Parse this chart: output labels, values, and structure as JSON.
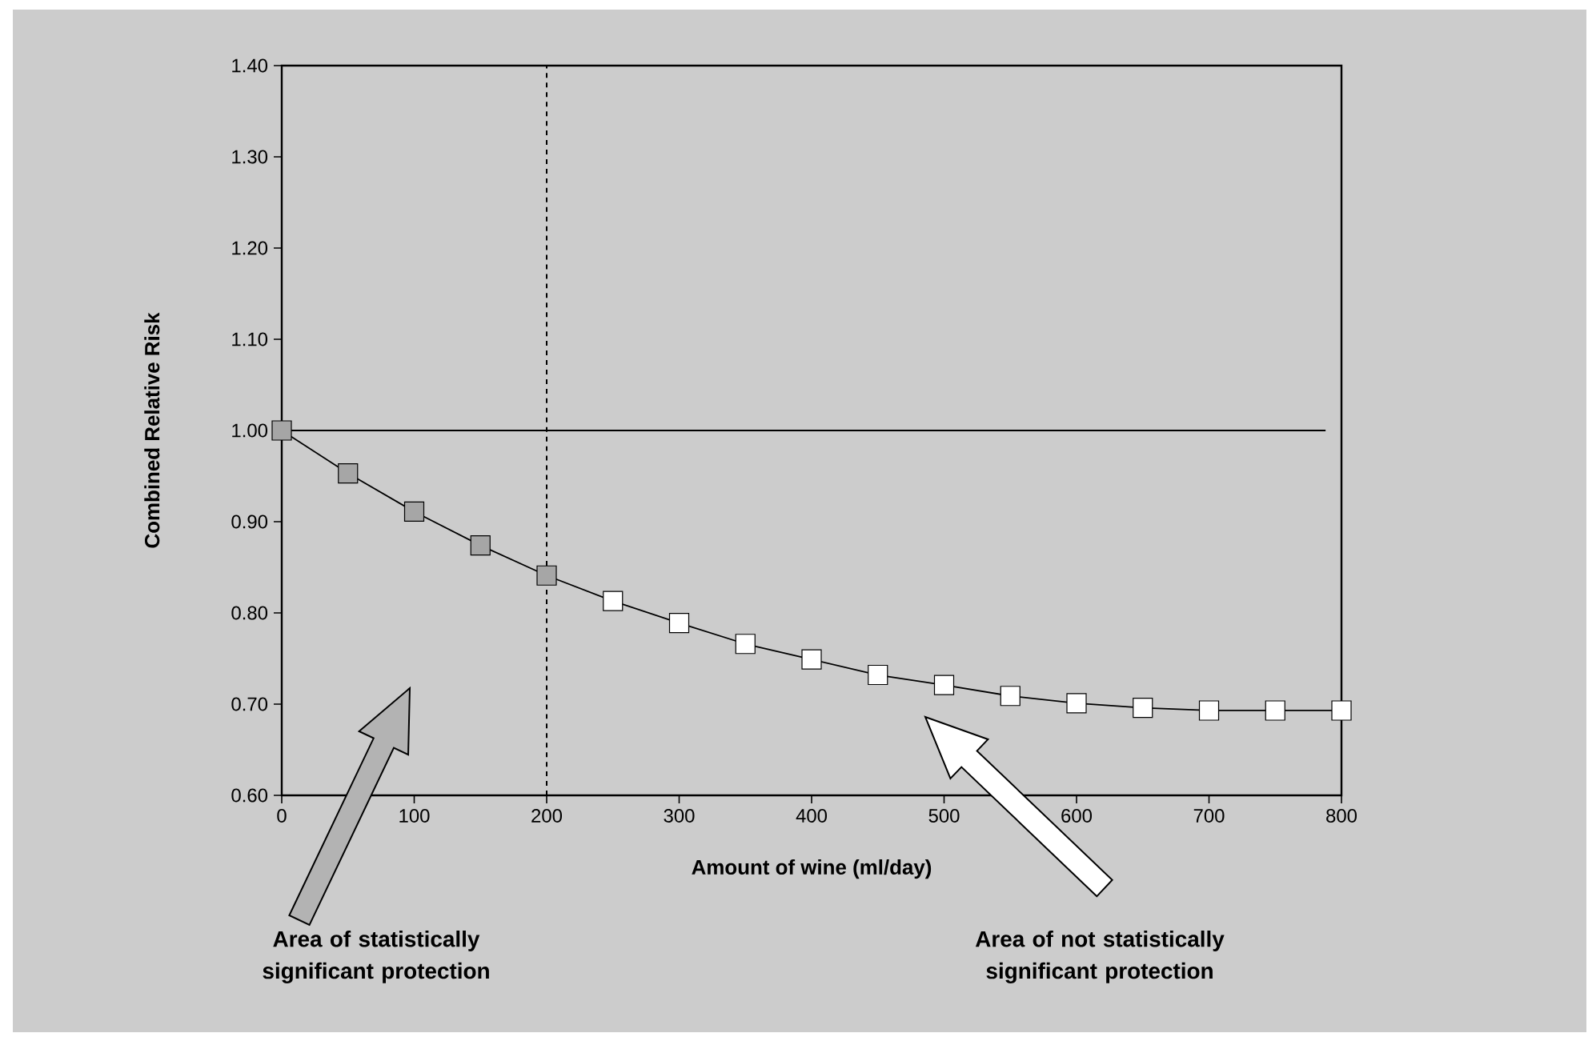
{
  "chart_data": {
    "type": "line",
    "xlabel": "Amount of wine (ml/day)",
    "ylabel": "Combined Relative Risk",
    "x": [
      0,
      50,
      100,
      150,
      200,
      250,
      300,
      350,
      400,
      450,
      500,
      550,
      600,
      650,
      700,
      750,
      800
    ],
    "series": [
      {
        "color": "#000000",
        "values": [
          1.0,
          0.953,
          0.911,
          0.874,
          0.841,
          0.813,
          0.789,
          0.766,
          0.749,
          0.732,
          0.721,
          0.709,
          0.701,
          0.696,
          0.693,
          0.693,
          0.693
        ],
        "colors": [
          "#a6a6a6",
          "#a6a6a6",
          "#a6a6a6",
          "#a6a6a6",
          "#a6a6a6",
          "#ffffff",
          "#ffffff",
          "#ffffff",
          "#ffffff",
          "#ffffff",
          "#ffffff",
          "#ffffff",
          "#ffffff",
          "#ffffff",
          "#ffffff",
          "#ffffff",
          "#ffffff"
        ]
      }
    ],
    "xlim": [
      0,
      800
    ],
    "xticks": [
      0,
      100,
      200,
      300,
      400,
      500,
      600,
      700,
      800
    ],
    "ylim": [
      0.6,
      1.4
    ],
    "yticks": [
      {
        "value": 0.6,
        "label": "0.60"
      },
      {
        "value": 0.7,
        "label": "0.70"
      },
      {
        "value": 0.8,
        "label": "0.80"
      },
      {
        "value": 0.9,
        "label": "0.90"
      },
      {
        "value": 1.0,
        "label": "1.00"
      },
      {
        "value": 1.1,
        "label": "1.10"
      },
      {
        "value": 1.2,
        "label": "1.20"
      },
      {
        "value": 1.3,
        "label": "1.30"
      },
      {
        "value": 1.4,
        "label": "1.40"
      }
    ],
    "ref_lines": [
      {
        "axis": "y",
        "value": 1.0,
        "color": "#000000",
        "line_style": "solid"
      },
      {
        "axis": "x",
        "value": 200,
        "color": "#000000",
        "line_style": "dashed"
      }
    ],
    "annotations": [
      "Area of statistically significant protection",
      "Area of not statistically significant protection"
    ],
    "marker": "square",
    "line_style": "solid"
  }
}
